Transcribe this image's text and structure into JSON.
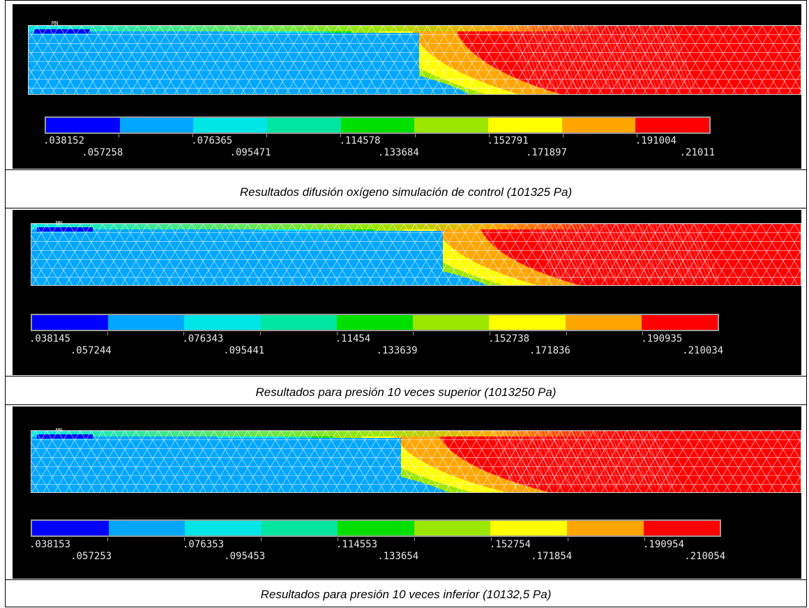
{
  "colormap": [
    "#0000ff",
    "#00a6ff",
    "#00e6e6",
    "#00e6a0",
    "#00e000",
    "#9be600",
    "#ffff00",
    "#ffa500",
    "#ff0000"
  ],
  "panels": [
    {
      "id": "control",
      "legend_labels_top": [
        ".038152",
        ".076365",
        ".114578",
        ".152791",
        ".191004"
      ],
      "legend_labels_bottom": [
        ".057258",
        ".095471",
        ".133684",
        ".171897",
        ".21011"
      ],
      "marker": "MN",
      "caption": "Resultados difusión oxígeno simulación de control (101325 Pa)"
    },
    {
      "id": "high-pressure",
      "legend_labels_top": [
        ".038145",
        ".076343",
        ".11454",
        ".152738",
        ".190935"
      ],
      "legend_labels_bottom": [
        ".057244",
        ".095441",
        ".133639",
        ".171836",
        ".210034"
      ],
      "marker": "MN",
      "caption": "Resultados para presión 10 veces superior (1013250 Pa)"
    },
    {
      "id": "low-pressure",
      "legend_labels_top": [
        ".038153",
        ".076353",
        ".114553",
        ".152754",
        ".190954"
      ],
      "legend_labels_bottom": [
        ".057253",
        ".095453",
        ".133654",
        ".171854",
        ".210054"
      ],
      "marker": "MN",
      "caption": "Resultados para presión 10 veces inferior (10132,5 Pa)"
    }
  ]
}
